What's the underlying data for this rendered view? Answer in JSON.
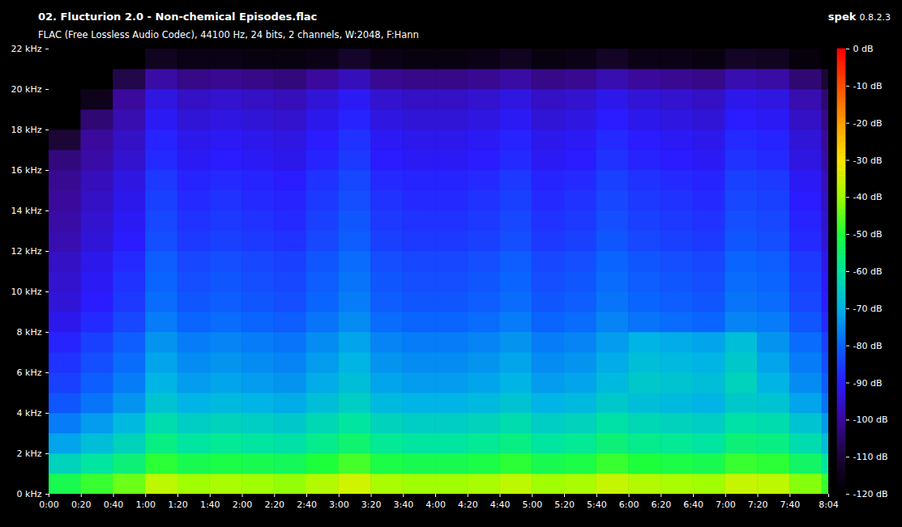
{
  "chart_data": {
    "type": "heatmap",
    "title": "02. Flucturion 2.0 - Non-chemical Episodes.flac",
    "subtitle": "FLAC (Free Lossless Audio Codec), 44100 Hz, 24 bits, 2 channels, W:2048, F:Hann",
    "software": "spek",
    "version": "0.8.2.3",
    "x_bins": [
      0,
      20,
      40,
      60,
      80,
      100,
      120,
      140,
      160,
      180,
      200,
      220,
      240,
      260,
      280,
      300,
      320,
      340,
      360,
      380,
      400,
      420,
      440,
      460,
      480,
      484
    ],
    "y_bins": [
      0,
      1,
      2,
      3,
      4,
      5,
      6,
      7,
      8,
      9,
      10,
      11,
      12,
      13,
      14,
      15,
      16,
      17,
      18,
      19,
      20,
      21,
      22
    ],
    "cells": [
      [
        -52,
        -48,
        -44,
        -37,
        -40,
        -39,
        -40,
        -41,
        -38,
        -35,
        -39,
        -40,
        -40,
        -39,
        -37,
        -40,
        -39,
        -36,
        -38,
        -39,
        -40,
        -36,
        -37,
        -42,
        -48
      ],
      [
        -64,
        -60,
        -56,
        -49,
        -52,
        -51,
        -52,
        -53,
        -50,
        -47,
        -51,
        -52,
        -52,
        -51,
        -49,
        -52,
        -51,
        -48,
        -50,
        -51,
        -52,
        -48,
        -49,
        -54,
        -60
      ],
      [
        -72,
        -68,
        -64,
        -57,
        -60,
        -59,
        -60,
        -61,
        -58,
        -55,
        -59,
        -60,
        -60,
        -59,
        -57,
        -60,
        -59,
        -56,
        -58,
        -59,
        -60,
        -56,
        -57,
        -62,
        -68
      ],
      [
        -77,
        -73,
        -69,
        -62,
        -65,
        -64,
        -65,
        -66,
        -63,
        -60,
        -64,
        -65,
        -65,
        -64,
        -62,
        -65,
        -64,
        -61,
        -63,
        -64,
        -65,
        -61,
        -62,
        -67,
        -73
      ],
      [
        -82,
        -78,
        -74,
        -67,
        -70,
        -69,
        -70,
        -71,
        -68,
        -65,
        -69,
        -70,
        -70,
        -69,
        -67,
        -70,
        -69,
        -66,
        -68,
        -69,
        -70,
        -66,
        -67,
        -72,
        -78
      ],
      [
        -85,
        -81,
        -77,
        -70,
        -73,
        -72,
        -73,
        -74,
        -71,
        -68,
        -72,
        -73,
        -73,
        -72,
        -70,
        -73,
        -72,
        -69,
        -66,
        -67,
        -68,
        -64,
        -70,
        -75,
        -81
      ],
      [
        -87,
        -83,
        -79,
        -72,
        -75,
        -74,
        -75,
        -76,
        -73,
        -70,
        -74,
        -75,
        -75,
        -74,
        -72,
        -75,
        -74,
        -71,
        -68,
        -69,
        -70,
        -66,
        -72,
        -77,
        -83
      ],
      [
        -89,
        -85,
        -81,
        -74,
        -77,
        -76,
        -77,
        -78,
        -75,
        -72,
        -76,
        -77,
        -77,
        -76,
        -74,
        -77,
        -76,
        -73,
        -70,
        -71,
        -72,
        -68,
        -74,
        -79,
        -85
      ],
      [
        -92,
        -88,
        -84,
        -77,
        -80,
        -79,
        -80,
        -81,
        -78,
        -75,
        -79,
        -80,
        -80,
        -79,
        -77,
        -80,
        -79,
        -76,
        -78,
        -79,
        -80,
        -76,
        -77,
        -82,
        -88
      ],
      [
        -94,
        -90,
        -86,
        -79,
        -82,
        -81,
        -82,
        -83,
        -80,
        -77,
        -81,
        -82,
        -82,
        -81,
        -79,
        -82,
        -81,
        -78,
        -80,
        -81,
        -82,
        -78,
        -79,
        -84,
        -90
      ],
      [
        -95,
        -91,
        -87,
        -80,
        -83,
        -82,
        -83,
        -84,
        -81,
        -78,
        -82,
        -83,
        -83,
        -82,
        -80,
        -83,
        -82,
        -79,
        -81,
        -82,
        -83,
        -79,
        -80,
        -85,
        -91
      ],
      [
        -96,
        -92,
        -88,
        -81,
        -84,
        -83,
        -84,
        -85,
        -82,
        -79,
        -83,
        -84,
        -84,
        -83,
        -81,
        -84,
        -83,
        -80,
        -82,
        -83,
        -84,
        -80,
        -81,
        -86,
        -92
      ],
      [
        -98,
        -94,
        -90,
        -83,
        -86,
        -85,
        -86,
        -87,
        -84,
        -81,
        -85,
        -86,
        -86,
        -85,
        -83,
        -86,
        -85,
        -82,
        -84,
        -85,
        -86,
        -82,
        -83,
        -88,
        -94
      ],
      [
        -99,
        -95,
        -91,
        -84,
        -87,
        -86,
        -87,
        -88,
        -85,
        -82,
        -86,
        -87,
        -87,
        -86,
        -84,
        -87,
        -86,
        -83,
        -85,
        -86,
        -87,
        -83,
        -84,
        -89,
        -95
      ],
      [
        -100,
        -96,
        -92,
        -85,
        -88,
        -87,
        -88,
        -89,
        -86,
        -83,
        -87,
        -88,
        -88,
        -87,
        -85,
        -88,
        -87,
        -84,
        -86,
        -87,
        -88,
        -84,
        -85,
        -90,
        -96
      ],
      [
        -101,
        -97,
        -93,
        -86,
        -89,
        -88,
        -89,
        -90,
        -87,
        -84,
        -88,
        -89,
        -89,
        -88,
        -86,
        -89,
        -88,
        -85,
        -87,
        -88,
        -89,
        -85,
        -86,
        -91,
        -97
      ],
      [
        -103,
        -99,
        -95,
        -88,
        -91,
        -90,
        -91,
        -92,
        -89,
        -86,
        -90,
        -91,
        -91,
        -90,
        -88,
        -91,
        -90,
        -87,
        -89,
        -90,
        -91,
        -87,
        -88,
        -93,
        -99
      ],
      [
        -110,
        -100,
        -96,
        -89,
        -92,
        -91,
        -92,
        -93,
        -90,
        -87,
        -91,
        -92,
        -92,
        -91,
        -89,
        -92,
        -91,
        -88,
        -90,
        -91,
        -92,
        -88,
        -89,
        -94,
        -100
      ],
      [
        -120,
        -104,
        -98,
        -91,
        -94,
        -93,
        -94,
        -95,
        -92,
        -89,
        -93,
        -94,
        -94,
        -93,
        -91,
        -94,
        -93,
        -90,
        -92,
        -93,
        -94,
        -90,
        -91,
        -96,
        -102
      ],
      [
        -120,
        -115,
        -100,
        -93,
        -96,
        -95,
        -96,
        -97,
        -94,
        -91,
        -95,
        -96,
        -96,
        -95,
        -93,
        -96,
        -95,
        -92,
        -94,
        -95,
        -96,
        -92,
        -93,
        -98,
        -104
      ],
      [
        -120,
        -120,
        -108,
        -99,
        -102,
        -101,
        -102,
        -103,
        -100,
        -97,
        -101,
        -102,
        -102,
        -101,
        -99,
        -102,
        -101,
        -98,
        -100,
        -101,
        -102,
        -98,
        -99,
        -104,
        -110
      ],
      [
        -120,
        -120,
        -120,
        -114,
        -116,
        -116,
        -117,
        -117,
        -116,
        -112,
        -116,
        -117,
        -117,
        -116,
        -114,
        -117,
        -116,
        -113,
        -116,
        -116,
        -117,
        -113,
        -114,
        -118,
        -120
      ]
    ],
    "xlim": [
      0,
      484
    ],
    "xticks": [
      {
        "value": 0,
        "label": "0:00"
      },
      {
        "value": 20,
        "label": "0:20"
      },
      {
        "value": 40,
        "label": "0:40"
      },
      {
        "value": 60,
        "label": "1:00"
      },
      {
        "value": 80,
        "label": "1:20"
      },
      {
        "value": 100,
        "label": "1:40"
      },
      {
        "value": 120,
        "label": "2:00"
      },
      {
        "value": 140,
        "label": "2:20"
      },
      {
        "value": 160,
        "label": "2:40"
      },
      {
        "value": 180,
        "label": "3:00"
      },
      {
        "value": 200,
        "label": "3:20"
      },
      {
        "value": 220,
        "label": "3:40"
      },
      {
        "value": 240,
        "label": "4:00"
      },
      {
        "value": 260,
        "label": "4:20"
      },
      {
        "value": 280,
        "label": "4:40"
      },
      {
        "value": 300,
        "label": "5:00"
      },
      {
        "value": 320,
        "label": "5:20"
      },
      {
        "value": 340,
        "label": "5:40"
      },
      {
        "value": 360,
        "label": "6:00"
      },
      {
        "value": 380,
        "label": "6:20"
      },
      {
        "value": 400,
        "label": "6:40"
      },
      {
        "value": 420,
        "label": "7:00"
      },
      {
        "value": 440,
        "label": "7:20"
      },
      {
        "value": 460,
        "label": "7:40"
      },
      {
        "value": 484,
        "label": "8:04"
      }
    ],
    "ylim": [
      0,
      22
    ],
    "yticks": [
      {
        "value": 0,
        "label": "0 kHz"
      },
      {
        "value": 2,
        "label": "2 kHz"
      },
      {
        "value": 4,
        "label": "4 kHz"
      },
      {
        "value": 6,
        "label": "6 kHz"
      },
      {
        "value": 8,
        "label": "8 kHz"
      },
      {
        "value": 10,
        "label": "10 kHz"
      },
      {
        "value": 12,
        "label": "12 kHz"
      },
      {
        "value": 14,
        "label": "14 kHz"
      },
      {
        "value": 16,
        "label": "16 kHz"
      },
      {
        "value": 18,
        "label": "18 kHz"
      },
      {
        "value": 20,
        "label": "20 kHz"
      },
      {
        "value": 22,
        "label": "22 kHz"
      }
    ],
    "colorbar": {
      "range": [
        -120,
        0
      ],
      "ticks": [
        {
          "value": 0,
          "label": "0 dB"
        },
        {
          "value": -10,
          "label": "-10 dB"
        },
        {
          "value": -20,
          "label": "-20 dB"
        },
        {
          "value": -30,
          "label": "-30 dB"
        },
        {
          "value": -40,
          "label": "-40 dB"
        },
        {
          "value": -50,
          "label": "-50 dB"
        },
        {
          "value": -60,
          "label": "-60 dB"
        },
        {
          "value": -70,
          "label": "-70 dB"
        },
        {
          "value": -80,
          "label": "-80 dB"
        },
        {
          "value": -90,
          "label": "-90 dB"
        },
        {
          "value": -100,
          "label": "-100 dB"
        },
        {
          "value": -110,
          "label": "-110 dB"
        },
        {
          "value": -120,
          "label": "-120 dB"
        }
      ]
    }
  }
}
